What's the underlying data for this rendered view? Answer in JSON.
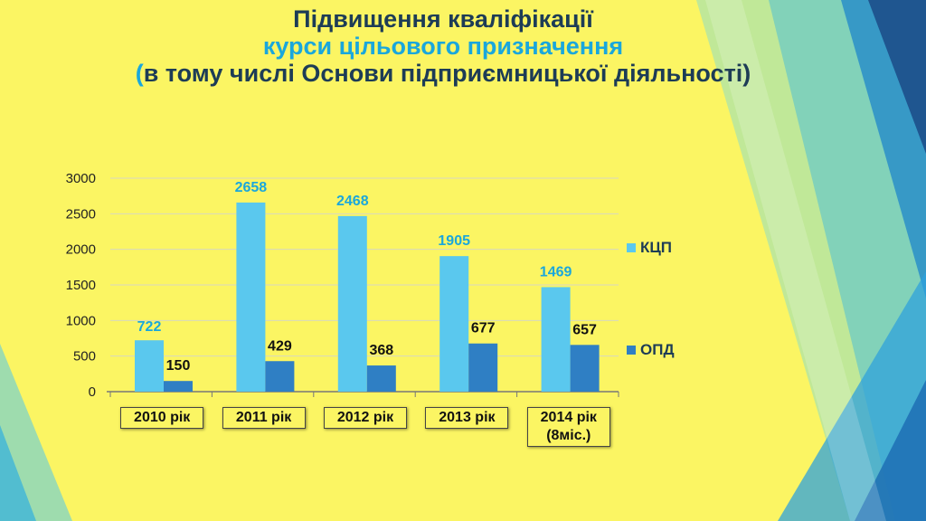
{
  "slide": {
    "title_line1": "Підвищення кваліфікації",
    "title_line2": "курси цільового призначення",
    "title_line3_open": "(",
    "title_line3_text": "в тому числі Основи підприємницької діяльності)"
  },
  "colors": {
    "background": "#fbf563",
    "kcp": "#5ac8ee",
    "opd": "#2f7fc4",
    "title_dark": "#1d3c56",
    "title_accent": "#1aa7dc"
  },
  "chart_data": {
    "type": "bar",
    "categories": [
      "2010 рік",
      "2011 рік",
      "2012 рік",
      "2013 рік",
      "2014 рік (8міс.)"
    ],
    "category_lines": [
      [
        "2010 рік"
      ],
      [
        "2011 рік"
      ],
      [
        "2012 рік"
      ],
      [
        "2013 рік"
      ],
      [
        "2014 рік",
        "(8міс.)"
      ]
    ],
    "series": [
      {
        "name": "КЦП",
        "values": [
          722,
          2658,
          2468,
          1905,
          1469
        ]
      },
      {
        "name": "ОПД",
        "values": [
          150,
          429,
          368,
          677,
          657
        ]
      }
    ],
    "yticks": [
      0,
      500,
      1000,
      1500,
      2000,
      2500,
      3000
    ],
    "ylim": [
      0,
      3000
    ],
    "grid": true,
    "legend": "right",
    "data_labels": true
  }
}
